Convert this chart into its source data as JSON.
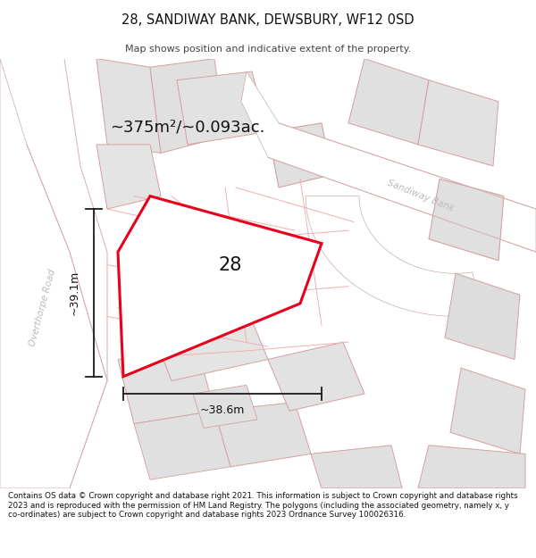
{
  "title_line1": "28, SANDIWAY BANK, DEWSBURY, WF12 0SD",
  "title_line2": "Map shows position and indicative extent of the property.",
  "area_text": "~375m²/~0.093ac.",
  "label_28": "28",
  "dim_horiz": "~38.6m",
  "dim_vert": "~39.1m",
  "road_label_sandiway": "Sandiway Bank",
  "road_label_over": "Overthorpe Road",
  "footer": "Contains OS data © Crown copyright and database right 2021. This information is subject to Crown copyright and database rights 2023 and is reproduced with the permission of HM Land Registry. The polygons (including the associated geometry, namely x, y co-ordinates) are subject to Crown copyright and database rights 2023 Ordnance Survey 100026316.",
  "bg_color": "#ffffff",
  "highlight_color": "#e8001c",
  "dim_line_color": "#1a1a1a",
  "parcel_fill": "#e8e8e8",
  "parcel_edge": "#d4a0a0",
  "road_fill": "#ffffff",
  "sub_line_color": "#f0b0b0",
  "text_dark": "#111111",
  "text_light": "#bbbbbb",
  "prop_fill": "#ffffff",
  "map_bg": "#f5f5f5",
  "title_fontsize": 10.5,
  "subtitle_fontsize": 8.0,
  "area_fontsize": 13,
  "label_fontsize": 15,
  "dim_fontsize": 9,
  "footer_fontsize": 6.3,
  "road_label_fontsize": 7.5
}
